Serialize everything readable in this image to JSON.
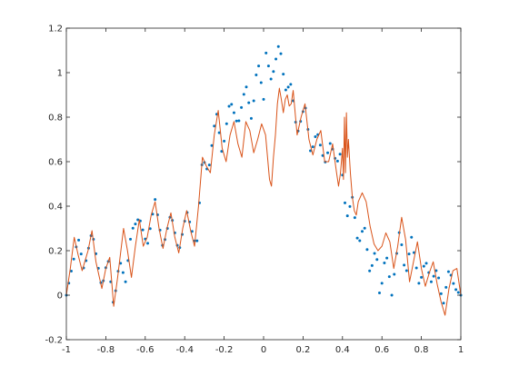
{
  "chart_data": {
    "type": "line",
    "title": "",
    "xlabel": "",
    "ylabel": "",
    "xlim": [
      -1,
      1
    ],
    "ylim": [
      -0.2,
      1.2
    ],
    "xticks": [
      -1,
      -0.8,
      -0.6,
      -0.4,
      -0.2,
      0,
      0.2,
      0.4,
      0.6,
      0.8,
      1
    ],
    "xtick_labels": [
      "-1",
      "-0.8",
      "-0.6",
      "-0.4",
      "-0.2",
      "0",
      "0.2",
      "0.4",
      "0.6",
      "0.8",
      "1"
    ],
    "yticks": [
      -0.2,
      0,
      0.2,
      0.4,
      0.6,
      0.8,
      1,
      1.2
    ],
    "ytick_labels": [
      "-0.2",
      "0",
      "0.2",
      "0.4",
      "0.6",
      "0.8",
      "1",
      "1.2"
    ],
    "grid": false,
    "box": true,
    "series": [
      {
        "style": "markers",
        "color": "#0072BD",
        "x_range": [
          -1,
          1
        ],
        "n_points": 161,
        "model": {
          "base": [
            [
              -1.0,
              0.15
            ],
            [
              -0.8,
              0.12
            ],
            [
              -0.6,
              0.2
            ],
            [
              -0.4,
              0.28
            ],
            [
              -0.2,
              0.6
            ],
            [
              -0.05,
              0.7
            ],
            [
              0.1,
              0.92
            ],
            [
              0.2,
              0.72
            ],
            [
              0.3,
              0.6
            ],
            [
              0.4,
              0.48
            ],
            [
              0.5,
              0.3
            ],
            [
              0.6,
              0.1
            ],
            [
              0.7,
              0.05
            ],
            [
              0.8,
              0.1
            ],
            [
              0.9,
              0.05
            ],
            [
              1.0,
              0.08
            ]
          ],
          "amplitude": [
            [
              -1.0,
              0.12
            ],
            [
              -0.5,
              0.1
            ],
            [
              0.0,
              0.12
            ],
            [
              0.1,
              0.2
            ],
            [
              0.3,
              0.1
            ],
            [
              0.6,
              0.14
            ],
            [
              1.0,
              0.12
            ]
          ],
          "phase_points": [
            [
              -1.0,
              0.0
            ],
            [
              -0.94,
              0.26
            ],
            [
              -0.91,
              0.11
            ],
            [
              -0.87,
              0.29
            ],
            [
              -0.82,
              0.03
            ],
            [
              -0.79,
              0.17
            ],
            [
              -0.76,
              -0.05
            ],
            [
              -0.73,
              0.16
            ],
            [
              -0.7,
              0.06
            ],
            [
              -0.67,
              0.29
            ],
            [
              -0.63,
              0.35
            ],
            [
              -0.59,
              0.22
            ],
            [
              -0.55,
              0.43
            ],
            [
              -0.51,
              0.21
            ],
            [
              -0.47,
              0.37
            ],
            [
              -0.43,
              0.19
            ],
            [
              -0.39,
              0.38
            ],
            [
              -0.34,
              0.21
            ],
            [
              -0.31,
              0.62
            ],
            [
              -0.28,
              0.55
            ],
            [
              -0.24,
              0.83
            ],
            [
              -0.21,
              0.63
            ],
            [
              -0.17,
              0.88
            ],
            [
              -0.13,
              0.76
            ],
            [
              -0.09,
              0.95
            ],
            [
              -0.06,
              0.78
            ],
            [
              -0.03,
              1.06
            ],
            [
              0.0,
              0.88
            ],
            [
              0.01,
              1.1
            ],
            [
              0.04,
              0.96
            ],
            [
              0.08,
              1.14
            ],
            [
              0.11,
              0.92
            ],
            [
              0.14,
              0.95
            ],
            [
              0.17,
              0.72
            ],
            [
              0.21,
              0.86
            ],
            [
              0.24,
              0.63
            ],
            [
              0.27,
              0.74
            ],
            [
              0.31,
              0.59
            ],
            [
              0.34,
              0.69
            ],
            [
              0.37,
              0.59
            ],
            [
              0.39,
              0.64
            ],
            [
              0.42,
              0.34
            ],
            [
              0.45,
              0.44
            ],
            [
              0.48,
              0.22
            ],
            [
              0.51,
              0.32
            ],
            [
              0.54,
              0.09
            ],
            [
              0.57,
              0.22
            ],
            [
              0.59,
              -0.02
            ],
            [
              0.62,
              0.2
            ],
            [
              0.65,
              0.0
            ],
            [
              0.69,
              0.3
            ],
            [
              0.72,
              0.08
            ],
            [
              0.75,
              0.26
            ],
            [
              0.79,
              0.04
            ],
            [
              0.82,
              0.16
            ],
            [
              0.85,
              0.06
            ],
            [
              0.88,
              0.12
            ],
            [
              0.91,
              -0.05
            ],
            [
              0.94,
              0.12
            ],
            [
              0.97,
              0.03
            ],
            [
              1.0,
              0.0
            ]
          ]
        }
      },
      {
        "style": "line",
        "color": "#D95319",
        "points": [
          [
            -1.0,
            0.0
          ],
          [
            -0.98,
            0.12
          ],
          [
            -0.96,
            0.26
          ],
          [
            -0.94,
            0.18
          ],
          [
            -0.92,
            0.11
          ],
          [
            -0.89,
            0.2
          ],
          [
            -0.87,
            0.29
          ],
          [
            -0.85,
            0.15
          ],
          [
            -0.82,
            0.03
          ],
          [
            -0.8,
            0.12
          ],
          [
            -0.78,
            0.17
          ],
          [
            -0.76,
            -0.05
          ],
          [
            -0.74,
            0.08
          ],
          [
            -0.71,
            0.3
          ],
          [
            -0.69,
            0.2
          ],
          [
            -0.67,
            0.08
          ],
          [
            -0.65,
            0.22
          ],
          [
            -0.63,
            0.34
          ],
          [
            -0.61,
            0.22
          ],
          [
            -0.59,
            0.26
          ],
          [
            -0.57,
            0.36
          ],
          [
            -0.55,
            0.42
          ],
          [
            -0.53,
            0.3
          ],
          [
            -0.51,
            0.21
          ],
          [
            -0.49,
            0.3
          ],
          [
            -0.47,
            0.37
          ],
          [
            -0.45,
            0.26
          ],
          [
            -0.43,
            0.19
          ],
          [
            -0.41,
            0.3
          ],
          [
            -0.39,
            0.38
          ],
          [
            -0.37,
            0.29
          ],
          [
            -0.35,
            0.22
          ],
          [
            -0.33,
            0.4
          ],
          [
            -0.31,
            0.62
          ],
          [
            -0.29,
            0.58
          ],
          [
            -0.27,
            0.55
          ],
          [
            -0.25,
            0.72
          ],
          [
            -0.23,
            0.83
          ],
          [
            -0.21,
            0.66
          ],
          [
            -0.19,
            0.6
          ],
          [
            -0.17,
            0.72
          ],
          [
            -0.15,
            0.78
          ],
          [
            -0.13,
            0.68
          ],
          [
            -0.11,
            0.62
          ],
          [
            -0.09,
            0.78
          ],
          [
            -0.07,
            0.74
          ],
          [
            -0.05,
            0.64
          ],
          [
            -0.03,
            0.7
          ],
          [
            -0.01,
            0.77
          ],
          [
            0.01,
            0.72
          ],
          [
            0.03,
            0.52
          ],
          [
            0.04,
            0.49
          ],
          [
            0.05,
            0.62
          ],
          [
            0.06,
            0.72
          ],
          [
            0.07,
            0.86
          ],
          [
            0.08,
            0.93
          ],
          [
            0.09,
            0.88
          ],
          [
            0.1,
            0.82
          ],
          [
            0.11,
            0.88
          ],
          [
            0.12,
            0.9
          ],
          [
            0.13,
            0.85
          ],
          [
            0.14,
            0.86
          ],
          [
            0.15,
            0.92
          ],
          [
            0.17,
            0.72
          ],
          [
            0.19,
            0.8
          ],
          [
            0.21,
            0.86
          ],
          [
            0.23,
            0.7
          ],
          [
            0.25,
            0.63
          ],
          [
            0.27,
            0.7
          ],
          [
            0.29,
            0.74
          ],
          [
            0.31,
            0.6
          ],
          [
            0.33,
            0.6
          ],
          [
            0.35,
            0.68
          ],
          [
            0.37,
            0.55
          ],
          [
            0.38,
            0.49
          ],
          [
            0.39,
            0.55
          ],
          [
            0.4,
            0.66
          ],
          [
            0.405,
            0.52
          ],
          [
            0.41,
            0.8
          ],
          [
            0.415,
            0.55
          ],
          [
            0.42,
            0.82
          ],
          [
            0.425,
            0.62
          ],
          [
            0.43,
            0.7
          ],
          [
            0.44,
            0.55
          ],
          [
            0.45,
            0.44
          ],
          [
            0.46,
            0.38
          ],
          [
            0.47,
            0.36
          ],
          [
            0.48,
            0.42
          ],
          [
            0.5,
            0.46
          ],
          [
            0.52,
            0.42
          ],
          [
            0.54,
            0.31
          ],
          [
            0.56,
            0.23
          ],
          [
            0.58,
            0.2
          ],
          [
            0.6,
            0.22
          ],
          [
            0.62,
            0.28
          ],
          [
            0.64,
            0.24
          ],
          [
            0.66,
            0.12
          ],
          [
            0.68,
            0.22
          ],
          [
            0.7,
            0.35
          ],
          [
            0.72,
            0.25
          ],
          [
            0.74,
            0.06
          ],
          [
            0.76,
            0.15
          ],
          [
            0.78,
            0.24
          ],
          [
            0.8,
            0.12
          ],
          [
            0.82,
            0.04
          ],
          [
            0.84,
            0.1
          ],
          [
            0.86,
            0.15
          ],
          [
            0.88,
            0.05
          ],
          [
            0.9,
            -0.03
          ],
          [
            0.92,
            -0.09
          ],
          [
            0.94,
            0.03
          ],
          [
            0.96,
            0.11
          ],
          [
            0.98,
            0.12
          ],
          [
            1.0,
            0.0
          ]
        ]
      }
    ]
  }
}
